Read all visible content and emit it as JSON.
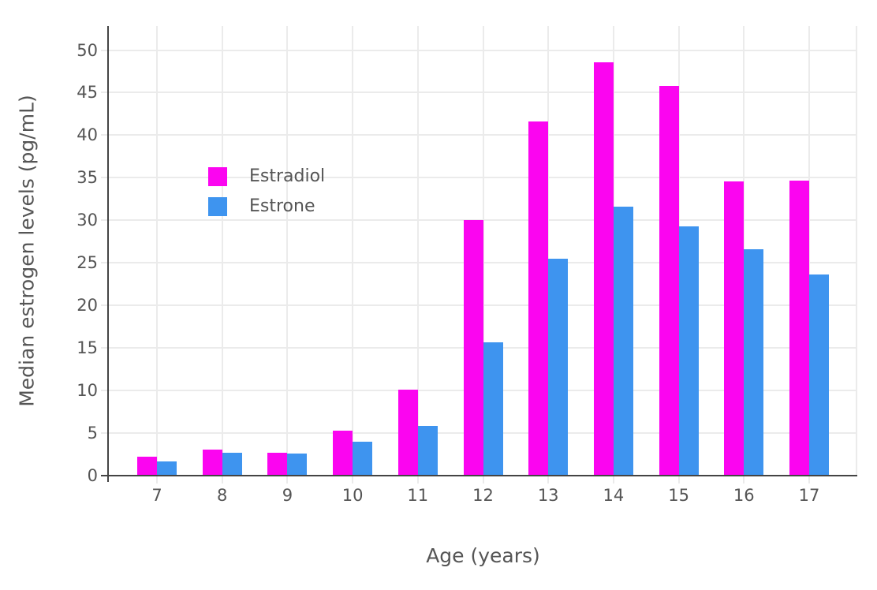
{
  "chart_data": {
    "type": "bar",
    "title": "",
    "categories": [
      "7",
      "8",
      "9",
      "10",
      "11",
      "12",
      "13",
      "14",
      "15",
      "16",
      "17"
    ],
    "series": [
      {
        "name": "Estradiol",
        "color": "#FB05F0",
        "values": [
          2.2,
          3.1,
          2.7,
          5.3,
          10.1,
          30.0,
          41.6,
          48.6,
          45.8,
          34.6,
          34.7
        ]
      },
      {
        "name": "Estrone",
        "color": "#3E94EF",
        "values": [
          1.7,
          2.7,
          2.6,
          4.0,
          5.8,
          15.7,
          25.5,
          31.6,
          29.3,
          26.6,
          23.6
        ]
      }
    ],
    "xlabel": "Age (years)",
    "ylabel": "Median estrogen levels (pg/mL)",
    "ylim": [
      0,
      52.8
    ],
    "yticks": [
      0,
      5,
      10,
      15,
      20,
      25,
      30,
      35,
      40,
      45,
      50
    ],
    "grid": true,
    "legend_position": "inside-top-left",
    "colors": {
      "axis": "#444444",
      "grid": "#EBEBEB",
      "tick_text": "#555555",
      "background": "#FFFFFF"
    }
  }
}
